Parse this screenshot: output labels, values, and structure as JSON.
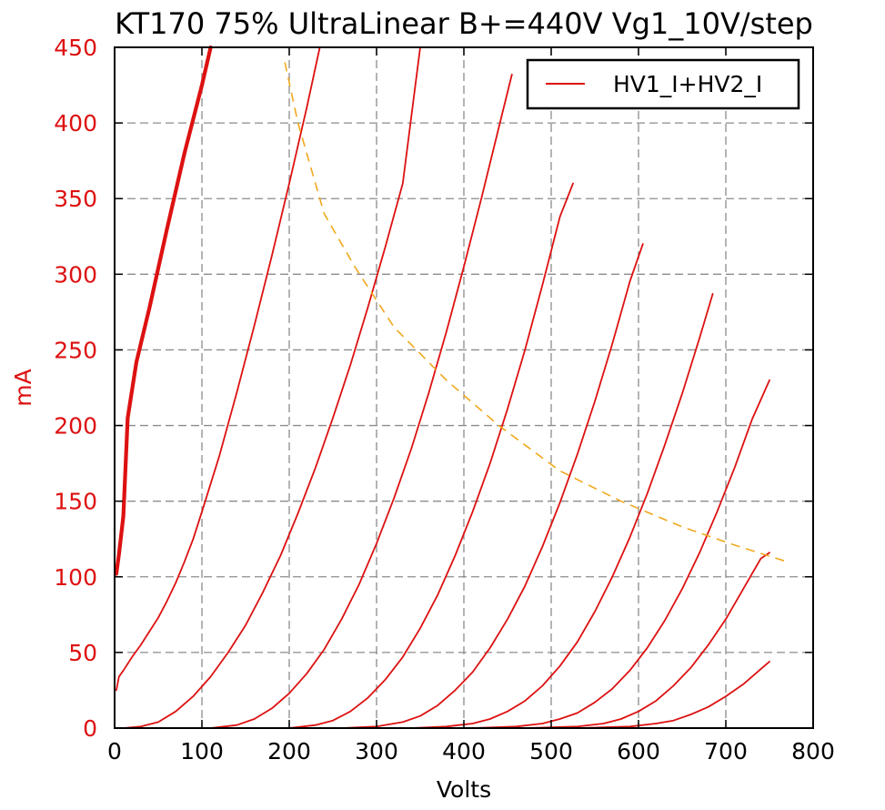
{
  "chart_data": {
    "type": "line",
    "title": "KT170 75% UltraLinear B+=440V Vg1_10V/step",
    "xlabel": "Volts",
    "ylabel": "mA",
    "xlim": [
      0,
      800
    ],
    "ylim": [
      0,
      450
    ],
    "xticks": [
      "0",
      "100",
      "200",
      "300",
      "400",
      "500",
      "600",
      "700",
      "800"
    ],
    "yticks": [
      "0",
      "50",
      "100",
      "150",
      "200",
      "250",
      "300",
      "350",
      "400",
      "450"
    ],
    "grid": true,
    "legend": {
      "position": "top-right",
      "entries": [
        "HV1_I+HV2_I"
      ]
    },
    "colors": {
      "curves": "#dd1111",
      "load_line": "#f0a81e",
      "y_axis": "#dd1111",
      "grid": "#8c8c8c"
    },
    "series": [
      {
        "name": "HV1_I+HV2_I",
        "bold": true,
        "points": [
          [
            2,
            102
          ],
          [
            5,
            115
          ],
          [
            10,
            140
          ],
          [
            15,
            205
          ],
          [
            25,
            242
          ],
          [
            40,
            278
          ],
          [
            60,
            330
          ],
          [
            80,
            380
          ],
          [
            100,
            425
          ],
          [
            110,
            450
          ]
        ]
      },
      {
        "points": [
          [
            2,
            25
          ],
          [
            5,
            34
          ],
          [
            10,
            38
          ],
          [
            20,
            47
          ],
          [
            30,
            55
          ],
          [
            40,
            64
          ],
          [
            50,
            73
          ],
          [
            60,
            84
          ],
          [
            70,
            96
          ],
          [
            80,
            110
          ],
          [
            90,
            125
          ],
          [
            100,
            143
          ],
          [
            120,
            180
          ],
          [
            140,
            222
          ],
          [
            160,
            266
          ],
          [
            180,
            312
          ],
          [
            200,
            360
          ],
          [
            220,
            410
          ],
          [
            235,
            450
          ]
        ]
      },
      {
        "points": [
          [
            10,
            0
          ],
          [
            30,
            1
          ],
          [
            50,
            4
          ],
          [
            70,
            11
          ],
          [
            90,
            21
          ],
          [
            110,
            34
          ],
          [
            130,
            50
          ],
          [
            150,
            68
          ],
          [
            170,
            90
          ],
          [
            190,
            114
          ],
          [
            210,
            142
          ],
          [
            230,
            172
          ],
          [
            250,
            205
          ],
          [
            270,
            240
          ],
          [
            290,
            278
          ],
          [
            310,
            318
          ],
          [
            330,
            360
          ],
          [
            350,
            450
          ]
        ]
      },
      {
        "points": [
          [
            110,
            0
          ],
          [
            140,
            2
          ],
          [
            160,
            6
          ],
          [
            180,
            13
          ],
          [
            200,
            23
          ],
          [
            220,
            36
          ],
          [
            240,
            52
          ],
          [
            260,
            72
          ],
          [
            280,
            95
          ],
          [
            300,
            122
          ],
          [
            320,
            152
          ],
          [
            340,
            185
          ],
          [
            360,
            222
          ],
          [
            380,
            262
          ],
          [
            400,
            305
          ],
          [
            420,
            350
          ],
          [
            440,
            397
          ],
          [
            455,
            432
          ]
        ]
      },
      {
        "points": [
          [
            200,
            0
          ],
          [
            230,
            2
          ],
          [
            250,
            5
          ],
          [
            270,
            11
          ],
          [
            290,
            20
          ],
          [
            310,
            32
          ],
          [
            330,
            47
          ],
          [
            350,
            66
          ],
          [
            370,
            88
          ],
          [
            390,
            114
          ],
          [
            410,
            143
          ],
          [
            430,
            175
          ],
          [
            450,
            211
          ],
          [
            470,
            250
          ],
          [
            490,
            293
          ],
          [
            510,
            338
          ],
          [
            525,
            360
          ]
        ]
      },
      {
        "points": [
          [
            260,
            0
          ],
          [
            300,
            1
          ],
          [
            330,
            4
          ],
          [
            350,
            8
          ],
          [
            370,
            15
          ],
          [
            390,
            25
          ],
          [
            410,
            37
          ],
          [
            430,
            53
          ],
          [
            450,
            72
          ],
          [
            470,
            94
          ],
          [
            490,
            120
          ],
          [
            510,
            149
          ],
          [
            530,
            181
          ],
          [
            550,
            216
          ],
          [
            570,
            254
          ],
          [
            590,
            295
          ],
          [
            605,
            320
          ]
        ]
      },
      {
        "points": [
          [
            340,
            0
          ],
          [
            380,
            1
          ],
          [
            410,
            3
          ],
          [
            430,
            6
          ],
          [
            450,
            11
          ],
          [
            470,
            18
          ],
          [
            490,
            28
          ],
          [
            510,
            41
          ],
          [
            530,
            57
          ],
          [
            550,
            77
          ],
          [
            570,
            100
          ],
          [
            590,
            126
          ],
          [
            610,
            155
          ],
          [
            630,
            187
          ],
          [
            650,
            221
          ],
          [
            670,
            258
          ],
          [
            685,
            287
          ]
        ]
      },
      {
        "points": [
          [
            410,
            0
          ],
          [
            460,
            1
          ],
          [
            490,
            3
          ],
          [
            510,
            6
          ],
          [
            530,
            10
          ],
          [
            550,
            17
          ],
          [
            570,
            26
          ],
          [
            590,
            38
          ],
          [
            610,
            53
          ],
          [
            630,
            71
          ],
          [
            650,
            92
          ],
          [
            670,
            116
          ],
          [
            690,
            143
          ],
          [
            710,
            172
          ],
          [
            730,
            204
          ],
          [
            750,
            230
          ]
        ]
      },
      {
        "points": [
          [
            470,
            0
          ],
          [
            530,
            1
          ],
          [
            560,
            3
          ],
          [
            580,
            6
          ],
          [
            600,
            11
          ],
          [
            620,
            18
          ],
          [
            640,
            28
          ],
          [
            660,
            40
          ],
          [
            680,
            55
          ],
          [
            700,
            72
          ],
          [
            720,
            92
          ],
          [
            740,
            112
          ],
          [
            750,
            116
          ]
        ]
      },
      {
        "points": [
          [
            530,
            0
          ],
          [
            590,
            1
          ],
          [
            620,
            3
          ],
          [
            640,
            5
          ],
          [
            660,
            9
          ],
          [
            680,
            14
          ],
          [
            700,
            21
          ],
          [
            720,
            29
          ],
          [
            740,
            39
          ],
          [
            750,
            44
          ]
        ]
      }
    ],
    "load_line": {
      "style": "dashed",
      "points": [
        [
          195,
          440
        ],
        [
          210,
          400
        ],
        [
          240,
          340
        ],
        [
          275,
          305
        ],
        [
          320,
          265
        ],
        [
          380,
          230
        ],
        [
          440,
          200
        ],
        [
          510,
          170
        ],
        [
          580,
          150
        ],
        [
          650,
          133
        ],
        [
          710,
          121
        ],
        [
          770,
          110
        ]
      ]
    }
  }
}
